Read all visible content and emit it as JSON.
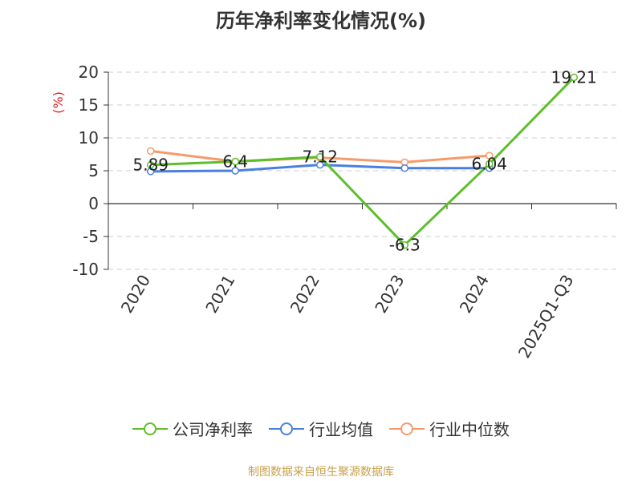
{
  "chart_data": {
    "type": "line",
    "title": "历年净利率变化情况(%)",
    "ylabel": "(%)",
    "categories": [
      "2020",
      "2021",
      "2022",
      "2023",
      "2024",
      "2025Q1-Q3"
    ],
    "ylim": [
      -10,
      20
    ],
    "yticks": [
      20,
      15,
      10,
      5,
      0,
      -5,
      -10
    ],
    "grid": true,
    "legend_position": "bottom",
    "series": [
      {
        "name": "公司净利率",
        "color": "#5cbf2a",
        "values": [
          5.89,
          6.4,
          7.12,
          -6.3,
          6.04,
          19.21
        ],
        "labels": [
          "5.89",
          "6.4",
          "7.12",
          "-6.3",
          "6.04",
          "19.21"
        ]
      },
      {
        "name": "行业均值",
        "color": "#4a7fe0",
        "values": [
          4.9,
          5.0,
          5.9,
          5.4,
          5.4,
          null
        ]
      },
      {
        "name": "行业中位数",
        "color": "#f79a6b",
        "values": [
          8.0,
          6.4,
          7.0,
          6.3,
          7.3,
          null
        ]
      }
    ]
  },
  "source_text": "制图数据来自恒生聚源数据库"
}
